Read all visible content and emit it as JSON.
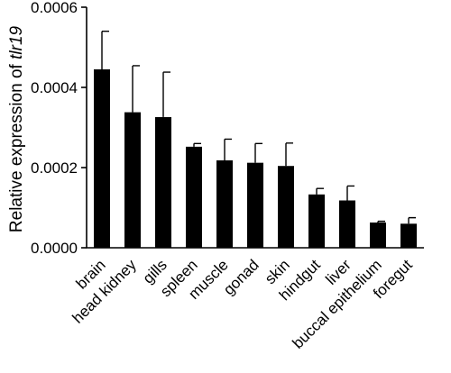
{
  "chart_data": {
    "type": "bar",
    "title": "",
    "xlabel": "",
    "ylabel_prefix": "Relative expression of ",
    "ylabel_gene": "tlr19",
    "ylim": [
      0,
      0.0006
    ],
    "yticks": [
      0,
      0.0002,
      0.0004,
      0.0006
    ],
    "ytick_labels": [
      "0.0000",
      "0.0002",
      "0.0004",
      "0.0006"
    ],
    "categories": [
      "brain",
      "head kidney",
      "gills",
      "spleen",
      "muscle",
      "gonad",
      "skin",
      "hindgut",
      "liver",
      "buccal epithelium",
      "foregut"
    ],
    "values": [
      0.000445,
      0.000338,
      0.000326,
      0.000252,
      0.000218,
      0.000212,
      0.000204,
      0.000133,
      0.000118,
      6.3e-05,
      6e-05
    ],
    "error_upper": [
      0.00054,
      0.000454,
      0.000438,
      0.00026,
      0.000271,
      0.00026,
      0.000261,
      0.000148,
      0.000154,
      6.6e-05,
      7.5e-05
    ],
    "bar_color": "#000000",
    "grid": false,
    "legend": "none"
  }
}
